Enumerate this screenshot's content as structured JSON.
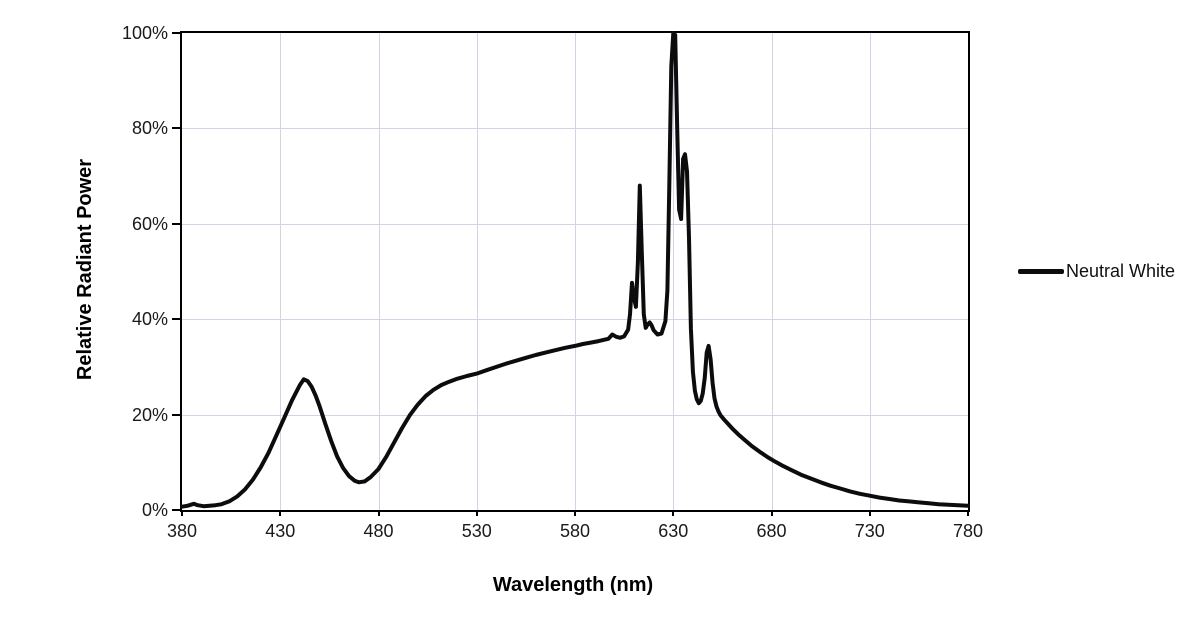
{
  "colors": {
    "background": "#ffffff",
    "grid": "#d2d4e6",
    "axis_frame": "#000000",
    "series_line": "#0c0c0c",
    "tick_text": "#1a1a1a",
    "title_text": "#000000"
  },
  "legend": {
    "label": "Neutral White",
    "swatch_color": "#0c0c0c"
  },
  "chart_data": {
    "type": "line",
    "title": "",
    "xlabel": "Wavelength (nm)",
    "ylabel": "Relative Radiant Power",
    "xlim": [
      380,
      780
    ],
    "ylim": [
      0,
      100
    ],
    "x_ticks": [
      380,
      430,
      480,
      530,
      580,
      630,
      680,
      730,
      780
    ],
    "y_ticks": [
      0,
      20,
      40,
      60,
      80,
      100
    ],
    "y_tick_labels": [
      "0%",
      "20%",
      "40%",
      "60%",
      "80%",
      "100%"
    ],
    "grid": true,
    "legend_position": "right",
    "series": [
      {
        "name": "Neutral White",
        "color": "#0c0c0c",
        "points": [
          [
            380,
            0.7
          ],
          [
            383,
            0.9
          ],
          [
            386,
            1.3
          ],
          [
            388,
            1.0
          ],
          [
            391,
            0.8
          ],
          [
            394,
            0.9
          ],
          [
            397,
            1.0
          ],
          [
            400,
            1.2
          ],
          [
            404,
            1.8
          ],
          [
            408,
            2.8
          ],
          [
            412,
            4.3
          ],
          [
            416,
            6.3
          ],
          [
            420,
            8.9
          ],
          [
            424,
            12.0
          ],
          [
            428,
            15.6
          ],
          [
            432,
            19.3
          ],
          [
            436,
            23.0
          ],
          [
            440,
            26.2
          ],
          [
            442,
            27.4
          ],
          [
            444,
            27.0
          ],
          [
            446,
            25.8
          ],
          [
            448,
            24.0
          ],
          [
            450,
            21.8
          ],
          [
            453,
            18.0
          ],
          [
            456,
            14.4
          ],
          [
            459,
            11.2
          ],
          [
            462,
            8.8
          ],
          [
            465,
            7.1
          ],
          [
            468,
            6.1
          ],
          [
            470,
            5.8
          ],
          [
            473,
            6.0
          ],
          [
            476,
            6.9
          ],
          [
            480,
            8.6
          ],
          [
            484,
            11.2
          ],
          [
            488,
            14.2
          ],
          [
            492,
            17.2
          ],
          [
            496,
            19.9
          ],
          [
            500,
            22.1
          ],
          [
            504,
            23.9
          ],
          [
            508,
            25.2
          ],
          [
            512,
            26.2
          ],
          [
            516,
            26.9
          ],
          [
            520,
            27.5
          ],
          [
            525,
            28.1
          ],
          [
            530,
            28.6
          ],
          [
            535,
            29.3
          ],
          [
            540,
            30.0
          ],
          [
            545,
            30.7
          ],
          [
            550,
            31.3
          ],
          [
            555,
            31.9
          ],
          [
            560,
            32.5
          ],
          [
            565,
            33.0
          ],
          [
            570,
            33.5
          ],
          [
            575,
            34.0
          ],
          [
            580,
            34.4
          ],
          [
            584,
            34.8
          ],
          [
            588,
            35.1
          ],
          [
            592,
            35.4
          ],
          [
            595,
            35.7
          ],
          [
            597,
            35.9
          ],
          [
            599,
            36.8
          ],
          [
            601,
            36.3
          ],
          [
            603,
            36.1
          ],
          [
            605,
            36.4
          ],
          [
            607,
            37.8
          ],
          [
            608,
            41.0
          ],
          [
            609,
            47.6
          ],
          [
            610,
            44.6
          ],
          [
            611,
            42.6
          ],
          [
            612,
            52.0
          ],
          [
            613,
            68.0
          ],
          [
            614,
            54.0
          ],
          [
            615,
            41.0
          ],
          [
            616,
            38.2
          ],
          [
            617,
            38.9
          ],
          [
            618,
            39.3
          ],
          [
            619,
            38.7
          ],
          [
            620,
            37.7
          ],
          [
            622,
            36.8
          ],
          [
            624,
            37.0
          ],
          [
            626,
            39.6
          ],
          [
            627,
            46.0
          ],
          [
            628,
            68.0
          ],
          [
            629,
            93.0
          ],
          [
            630,
            100.0
          ],
          [
            631,
            99.6
          ],
          [
            632,
            80.0
          ],
          [
            633,
            63.0
          ],
          [
            634,
            61.0
          ],
          [
            635,
            73.6
          ],
          [
            636,
            74.6
          ],
          [
            637,
            71.0
          ],
          [
            638,
            57.0
          ],
          [
            639,
            38.0
          ],
          [
            640,
            29.0
          ],
          [
            641,
            25.0
          ],
          [
            642,
            23.2
          ],
          [
            643,
            22.4
          ],
          [
            644,
            22.9
          ],
          [
            645,
            24.4
          ],
          [
            646,
            27.6
          ],
          [
            647,
            33.0
          ],
          [
            648,
            34.4
          ],
          [
            649,
            31.6
          ],
          [
            650,
            26.6
          ],
          [
            651,
            23.4
          ],
          [
            652,
            21.7
          ],
          [
            653,
            20.7
          ],
          [
            654,
            19.9
          ],
          [
            656,
            18.9
          ],
          [
            658,
            18.0
          ],
          [
            660,
            17.1
          ],
          [
            663,
            15.9
          ],
          [
            666,
            14.8
          ],
          [
            670,
            13.4
          ],
          [
            674,
            12.2
          ],
          [
            678,
            11.1
          ],
          [
            682,
            10.1
          ],
          [
            686,
            9.2
          ],
          [
            690,
            8.4
          ],
          [
            695,
            7.4
          ],
          [
            700,
            6.6
          ],
          [
            705,
            5.8
          ],
          [
            710,
            5.1
          ],
          [
            715,
            4.5
          ],
          [
            720,
            3.9
          ],
          [
            725,
            3.4
          ],
          [
            730,
            3.0
          ],
          [
            735,
            2.6
          ],
          [
            740,
            2.3
          ],
          [
            745,
            2.0
          ],
          [
            750,
            1.8
          ],
          [
            755,
            1.6
          ],
          [
            760,
            1.4
          ],
          [
            765,
            1.2
          ],
          [
            770,
            1.1
          ],
          [
            775,
            1.0
          ],
          [
            780,
            0.9
          ]
        ]
      }
    ]
  }
}
